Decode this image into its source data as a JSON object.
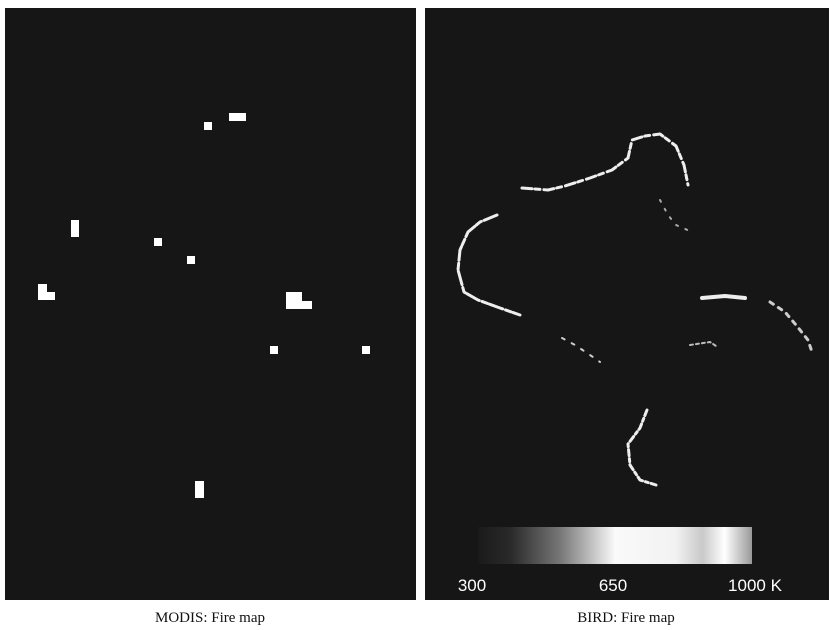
{
  "panels": [
    {
      "caption": "MODIS: Fire map"
    },
    {
      "caption": "BIRD: Fire map"
    }
  ],
  "colorbar": {
    "labels": [
      "300",
      "650",
      "1000 K"
    ]
  }
}
